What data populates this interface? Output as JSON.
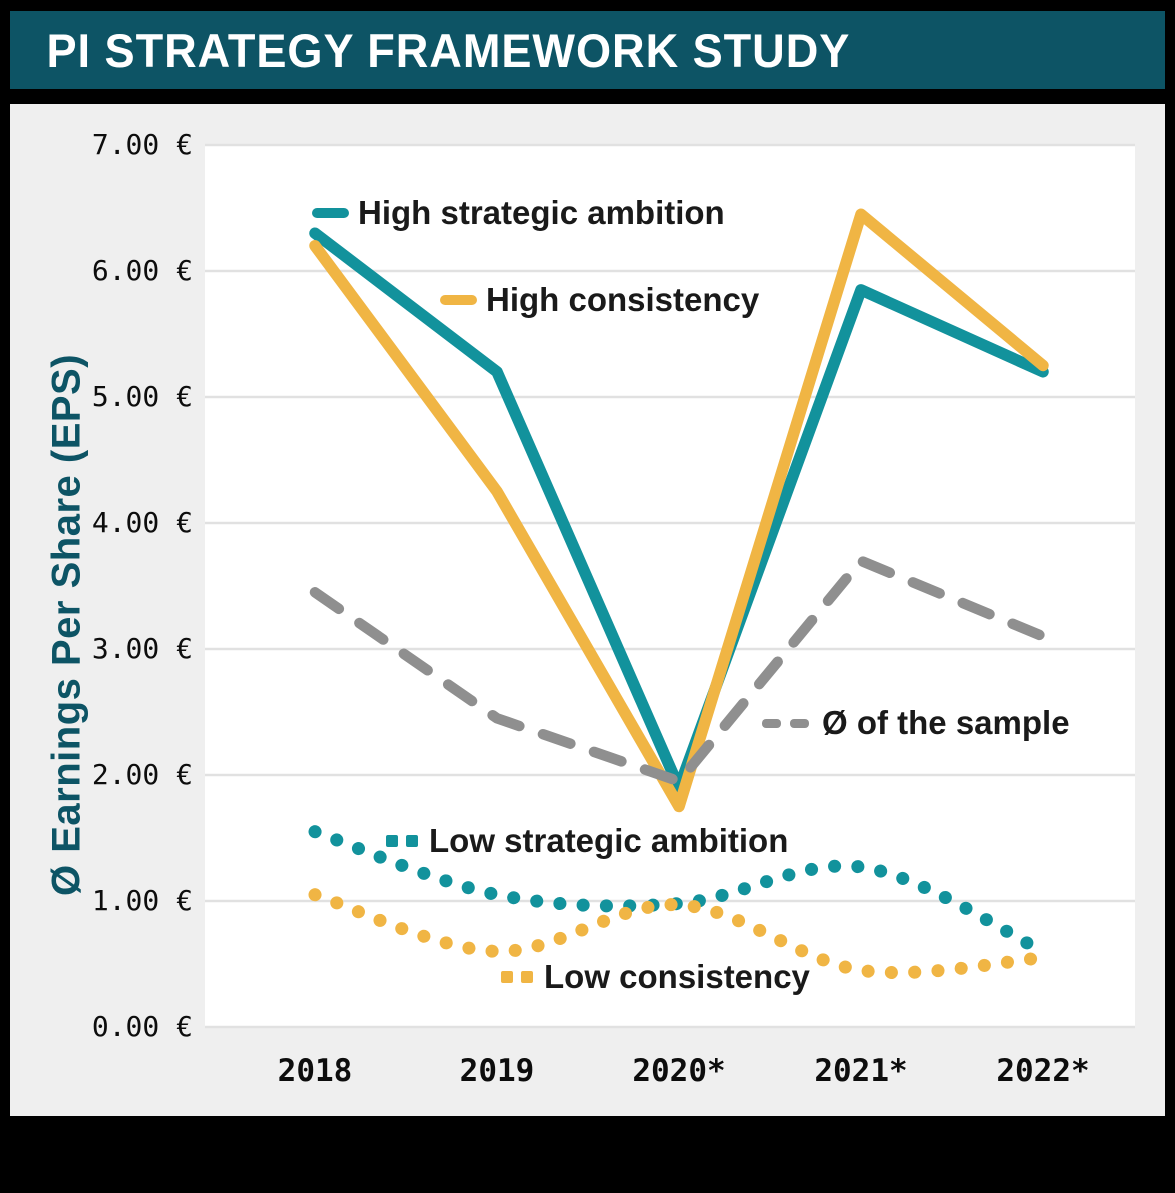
{
  "header": {
    "title": "PI STRATEGY FRAMEWORK STUDY"
  },
  "colors": {
    "teal": "#12929c",
    "amber": "#f0b544",
    "gray": "#8f8f8f",
    "header_bg": "#0d5465",
    "panel_bg": "#efefef",
    "plot_bg": "#ffffff",
    "gridline": "#e1e1e1",
    "axis_title": "#0d5465",
    "frame": "#000000",
    "text": "#1a1a1a"
  },
  "chart_data": {
    "type": "line",
    "title": "PI STRATEGY FRAMEWORK STUDY",
    "categories": [
      "2018",
      "2019",
      "2020*",
      "2021*",
      "2022*"
    ],
    "xlabel": "",
    "ylabel": "Ø Earnings Per Share (EPS)",
    "y_ticks": [
      "7.00 €",
      "6.00 €",
      "5.00 €",
      "4.00 €",
      "3.00 €",
      "2.00 €",
      "1.00 €",
      "0.00 €"
    ],
    "ylim": [
      0,
      7
    ],
    "currency": "€",
    "grid": true,
    "legend_position": "inline annotations next to lines",
    "series": [
      {
        "name": "High strategic ambition",
        "style": "solid",
        "color": "teal",
        "values": [
          6.3,
          5.2,
          1.9,
          5.85,
          5.2
        ]
      },
      {
        "name": "High consistency",
        "style": "solid",
        "color": "amber",
        "values": [
          6.2,
          4.25,
          1.75,
          6.45,
          5.25
        ]
      },
      {
        "name": "Ø of the sample",
        "style": "dashed",
        "color": "gray",
        "values": [
          3.45,
          2.45,
          1.95,
          3.7,
          3.1
        ]
      },
      {
        "name": "Low strategic ambition",
        "style": "dotted",
        "color": "teal",
        "values": [
          1.55,
          1.05,
          0.98,
          1.27,
          0.6
        ]
      },
      {
        "name": "Low consistency",
        "style": "dotted",
        "color": "amber",
        "values": [
          1.05,
          0.6,
          0.97,
          0.45,
          0.55
        ]
      }
    ]
  }
}
